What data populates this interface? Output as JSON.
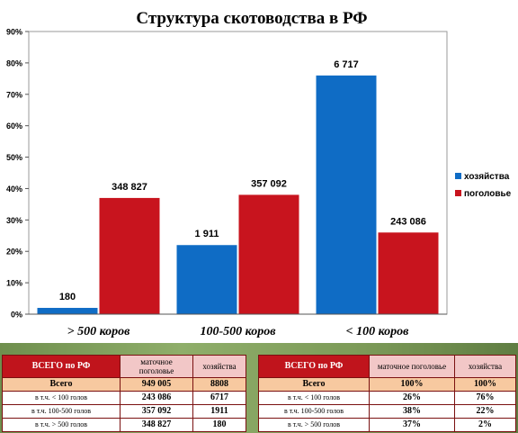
{
  "chart_data": {
    "type": "bar",
    "title": "Структура скотоводства в  РФ",
    "categories": [
      "> 500 коров",
      "100-500 коров",
      "< 100 коров"
    ],
    "series": [
      {
        "name": "хозяйства",
        "color": "#0f6cc5",
        "values": [
          2,
          22,
          76
        ],
        "labels": [
          "180",
          "1 911",
          "6 717"
        ]
      },
      {
        "name": "поголовье",
        "color": "#c8141e",
        "values": [
          37,
          38,
          26
        ],
        "labels": [
          "348 827",
          "357 092",
          "243 086"
        ]
      }
    ],
    "ylim": [
      0,
      90
    ],
    "yticks": [
      "0%",
      "10%",
      "20%",
      "30%",
      "40%",
      "50%",
      "60%",
      "70%",
      "80%",
      "90%"
    ],
    "ytick_values": [
      0,
      10,
      20,
      30,
      40,
      50,
      60,
      70,
      80,
      90
    ],
    "legend_position": "right",
    "grid": false
  },
  "table_left": {
    "headers": [
      "ВСЕГО по РФ",
      "маточное поголовье",
      "хозяйства"
    ],
    "rows": [
      [
        "Всего",
        "949 005",
        "8808"
      ],
      [
        "в т.ч. <  100 голов",
        "243 086",
        "6717"
      ],
      [
        "в т.ч. 100-500 голов",
        "357 092",
        "1911"
      ],
      [
        "в т.ч. > 500 голов",
        "348 827",
        "180"
      ]
    ]
  },
  "table_right": {
    "headers": [
      "ВСЕГО по РФ",
      "маточное поголовье",
      "хозяйства"
    ],
    "rows": [
      [
        "Всего",
        "100%",
        "100%"
      ],
      [
        "в т.ч. <  100 голов",
        "26%",
        "76%"
      ],
      [
        "в т.ч. 100-500 голов",
        "38%",
        "22%"
      ],
      [
        "в т.ч. > 500 голов",
        "37%",
        "2%"
      ]
    ]
  }
}
